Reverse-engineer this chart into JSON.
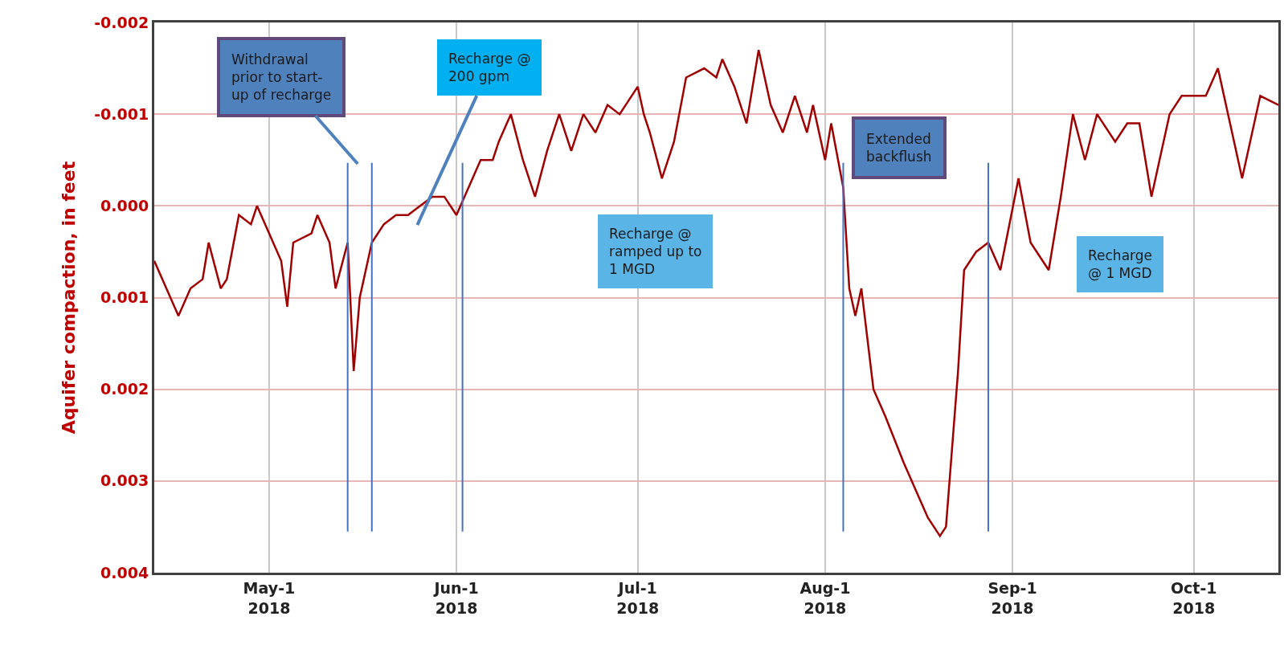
{
  "chart_data": {
    "type": "line",
    "ylabel": "Aquifer compaction, in feet",
    "x": [
      "2018-04-12",
      "2018-04-14",
      "2018-04-16",
      "2018-04-18",
      "2018-04-20",
      "2018-04-21",
      "2018-04-23",
      "2018-04-24",
      "2018-04-26",
      "2018-04-28",
      "2018-04-29",
      "2018-05-01",
      "2018-05-03",
      "2018-05-04",
      "2018-05-05",
      "2018-05-08",
      "2018-05-09",
      "2018-05-11",
      "2018-05-12",
      "2018-05-14",
      "2018-05-15",
      "2018-05-16",
      "2018-05-18",
      "2018-05-20",
      "2018-05-22",
      "2018-05-24",
      "2018-05-26",
      "2018-05-28",
      "2018-05-30",
      "2018-06-01",
      "2018-06-03",
      "2018-06-05",
      "2018-06-07",
      "2018-06-08",
      "2018-06-10",
      "2018-06-12",
      "2018-06-14",
      "2018-06-16",
      "2018-06-18",
      "2018-06-20",
      "2018-06-22",
      "2018-06-24",
      "2018-06-26",
      "2018-06-28",
      "2018-07-01",
      "2018-07-02",
      "2018-07-03",
      "2018-07-05",
      "2018-07-07",
      "2018-07-09",
      "2018-07-12",
      "2018-07-14",
      "2018-07-15",
      "2018-07-17",
      "2018-07-19",
      "2018-07-21",
      "2018-07-23",
      "2018-07-25",
      "2018-07-27",
      "2018-07-29",
      "2018-07-30",
      "2018-08-01",
      "2018-08-02",
      "2018-08-04",
      "2018-08-05",
      "2018-08-06",
      "2018-08-07",
      "2018-08-09",
      "2018-08-11",
      "2018-08-14",
      "2018-08-16",
      "2018-08-18",
      "2018-08-20",
      "2018-08-21",
      "2018-08-23",
      "2018-08-24",
      "2018-08-26",
      "2018-08-28",
      "2018-08-30",
      "2018-09-02",
      "2018-09-04",
      "2018-09-07",
      "2018-09-09",
      "2018-09-11",
      "2018-09-13",
      "2018-09-15",
      "2018-09-18",
      "2018-09-20",
      "2018-09-22",
      "2018-09-24",
      "2018-09-27",
      "2018-09-29",
      "2018-10-03",
      "2018-10-05",
      "2018-10-07",
      "2018-10-09",
      "2018-10-12",
      "2018-10-15"
    ],
    "series": [
      {
        "color": "#a00000",
        "values": [
          0.0006,
          0.0009,
          0.0012,
          0.0009,
          0.0008,
          0.0004,
          0.0009,
          0.0008,
          0.0001,
          0.0002,
          0.0,
          0.0003,
          0.0006,
          0.0011,
          0.0004,
          0.0003,
          0.0001,
          0.0004,
          0.0009,
          0.0004,
          0.0018,
          0.001,
          0.0004,
          0.0002,
          0.0001,
          0.0001,
          0.0,
          -0.0001,
          -0.0001,
          0.0001,
          -0.0002,
          -0.0005,
          -0.0005,
          -0.0007,
          -0.001,
          -0.0005,
          -0.0001,
          -0.0006,
          -0.001,
          -0.0006,
          -0.001,
          -0.0008,
          -0.0011,
          -0.001,
          -0.0013,
          -0.001,
          -0.0008,
          -0.0003,
          -0.0007,
          -0.0014,
          -0.0015,
          -0.0014,
          -0.0016,
          -0.0013,
          -0.0009,
          -0.0017,
          -0.0011,
          -0.0008,
          -0.0012,
          -0.0008,
          -0.0011,
          -0.0005,
          -0.0009,
          -0.0002,
          0.0009,
          0.0012,
          0.0009,
          0.002,
          0.0023,
          0.0028,
          0.0031,
          0.0034,
          0.0036,
          0.0035,
          0.0018,
          0.0007,
          0.0005,
          0.0004,
          0.0007,
          -0.0003,
          0.0004,
          0.0007,
          -0.0001,
          -0.001,
          -0.0005,
          -0.001,
          -0.0007,
          -0.0009,
          -0.0009,
          -0.0001,
          -0.001,
          -0.0012,
          -0.0012,
          -0.0015,
          -0.0009,
          -0.0003,
          -0.0012,
          -0.0011
        ]
      }
    ],
    "xlim": [
      "2018-04-12",
      "2018-10-15"
    ],
    "xticks": [
      {
        "value": "2018-05-01",
        "label": "May-1\n2018"
      },
      {
        "value": "2018-06-01",
        "label": "Jun-1\n2018"
      },
      {
        "value": "2018-07-01",
        "label": "Jul-1\n2018"
      },
      {
        "value": "2018-08-01",
        "label": "Aug-1\n2018"
      },
      {
        "value": "2018-09-01",
        "label": "Sep-1\n2018"
      },
      {
        "value": "2018-10-01",
        "label": "Oct-1\n2018"
      }
    ],
    "ylim": [
      0.004,
      -0.002
    ],
    "yticks": [
      {
        "value": -0.002,
        "label": "-0.002"
      },
      {
        "value": -0.001,
        "label": "-0.001"
      },
      {
        "value": 0,
        "label": "0.000"
      },
      {
        "value": 0.001,
        "label": "0.001"
      },
      {
        "value": 0.002,
        "label": "0.002"
      },
      {
        "value": 0.003,
        "label": "0.003"
      },
      {
        "value": 0.004,
        "label": "0.004"
      }
    ],
    "grid": true,
    "marker": "none",
    "line_style": "solid",
    "ref_lines": [
      {
        "axis": "x",
        "value": "2018-05-14",
        "color": "#4472c4"
      },
      {
        "axis": "x",
        "value": "2018-05-18",
        "color": "#4472c4"
      },
      {
        "axis": "x",
        "value": "2018-06-02",
        "color": "#4472c4"
      },
      {
        "axis": "x",
        "value": "2018-08-04",
        "color": "#4472c4"
      },
      {
        "axis": "x",
        "value": "2018-08-28",
        "color": "#4472c4"
      }
    ],
    "annotations": [
      "Withdrawal\nprior to start-\nup of recharge",
      "Recharge @\n200 gpm",
      "Recharge @\nramped up to\n1 MGD",
      "Extended\nbackflush",
      "Recharge\n@ 1 MGD"
    ]
  }
}
